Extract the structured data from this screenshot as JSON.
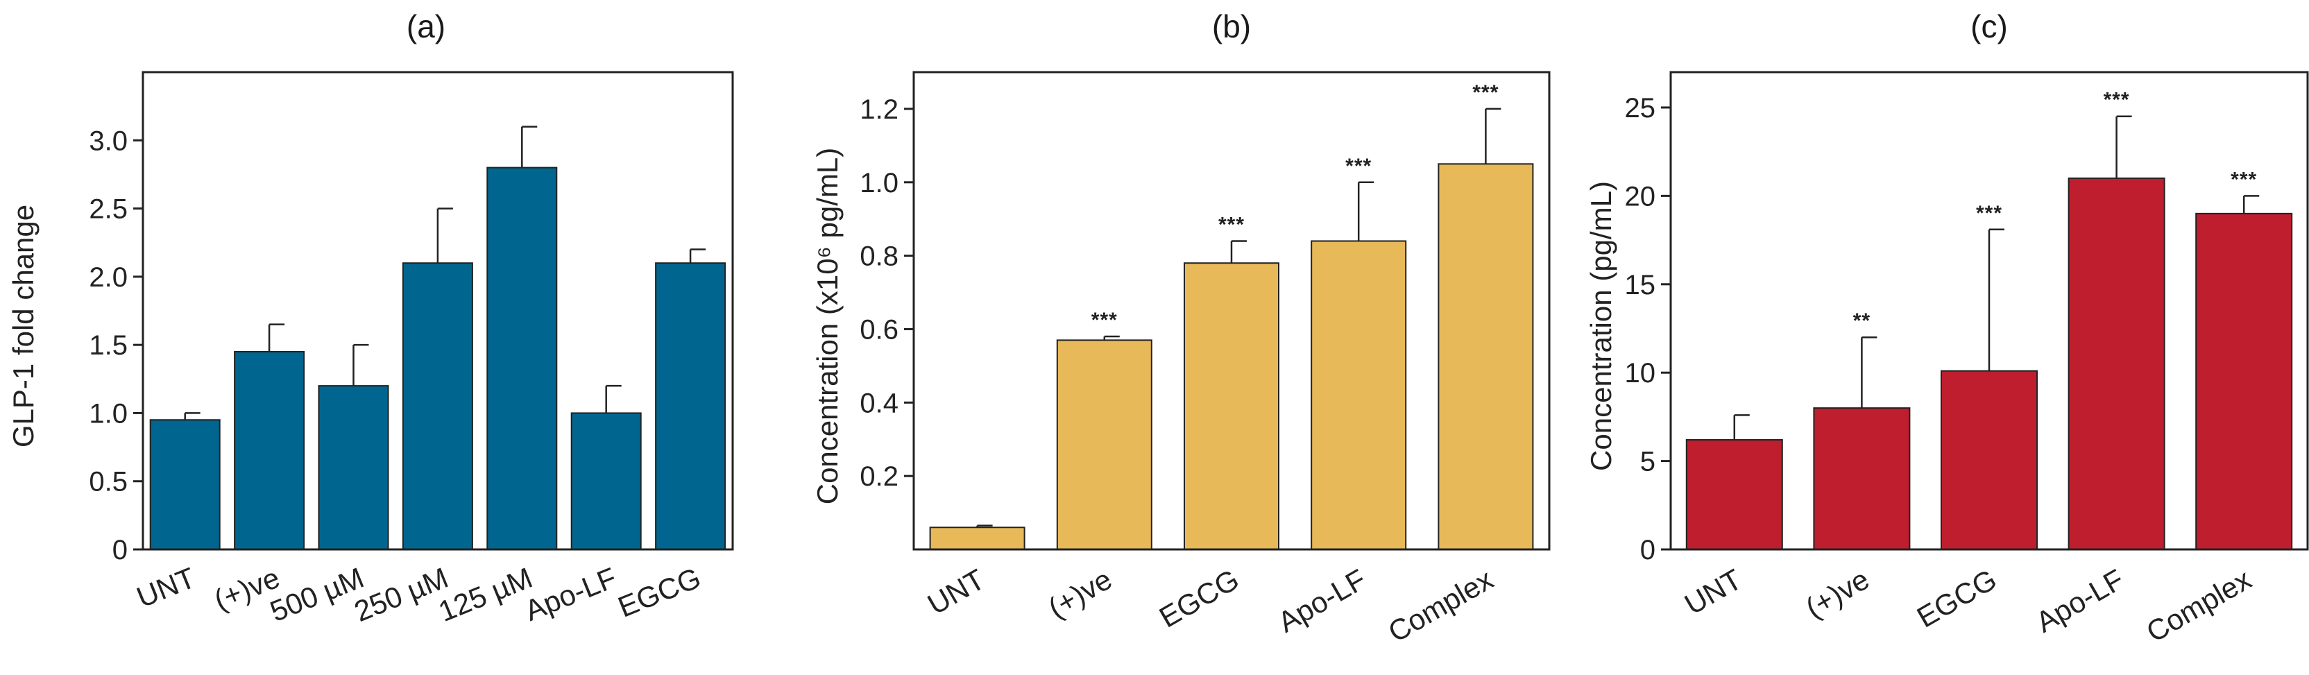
{
  "chart_data": [
    {
      "panel": "(a)",
      "type": "bar",
      "title": "(a)",
      "xlabel": "",
      "ylabel": "GLP-1 fold change",
      "categories": [
        "UNT",
        "(+)ve",
        "500 µM",
        "250 µM",
        "125 µM",
        "Apo-LF",
        "EGCG"
      ],
      "values": [
        0.95,
        1.45,
        1.2,
        2.1,
        2.8,
        1.0,
        2.1
      ],
      "errors": [
        0.05,
        0.2,
        0.3,
        0.4,
        0.3,
        0.2,
        0.1
      ],
      "significance": [
        "",
        "",
        "",
        "",
        "",
        "",
        ""
      ],
      "ylim": [
        0,
        3.5
      ],
      "yticks": [
        0,
        0.5,
        1.0,
        1.5,
        2.0,
        2.5,
        3.0
      ],
      "ytick_labels": [
        "0",
        "0.5",
        "1.0",
        "1.5",
        "2.0",
        "2.5",
        "3.0"
      ],
      "color": "#00668f",
      "grid": false
    },
    {
      "panel": "(b)",
      "type": "bar",
      "title": "(b)",
      "xlabel": "",
      "ylabel": "Concentration (x10⁶ pg/mL)",
      "categories": [
        "UNT",
        "(+)ve",
        "EGCG",
        "Apo-LF",
        "Complex"
      ],
      "values": [
        0.06,
        0.57,
        0.78,
        0.84,
        1.05
      ],
      "errors": [
        0.005,
        0.01,
        0.06,
        0.16,
        0.15
      ],
      "significance": [
        "",
        "***",
        "***",
        "***",
        "***"
      ],
      "ylim": [
        0,
        1.3
      ],
      "yticks": [
        0.2,
        0.4,
        0.6,
        0.8,
        1.0,
        1.2
      ],
      "ytick_labels": [
        "0.2",
        "0.4",
        "0.6",
        "0.8",
        "1.0",
        "1.2"
      ],
      "color": "#e8b958",
      "grid": false
    },
    {
      "panel": "(c)",
      "type": "bar",
      "title": "(c)",
      "xlabel": "",
      "ylabel": "Concentration (pg/mL)",
      "categories": [
        "UNT",
        "(+)ve",
        "EGCG",
        "Apo-LF",
        "Complex"
      ],
      "values": [
        6.2,
        8.0,
        10.1,
        21.0,
        19.0
      ],
      "errors": [
        1.4,
        4.0,
        8.0,
        3.5,
        1.0
      ],
      "significance": [
        "",
        "**",
        "***",
        "***",
        "***"
      ],
      "ylim": [
        0,
        27
      ],
      "yticks": [
        0,
        5,
        10,
        15,
        20,
        25
      ],
      "ytick_labels": [
        "0",
        "5",
        "10",
        "15",
        "20",
        "25"
      ],
      "color": "#be1e2d",
      "grid": false
    }
  ]
}
